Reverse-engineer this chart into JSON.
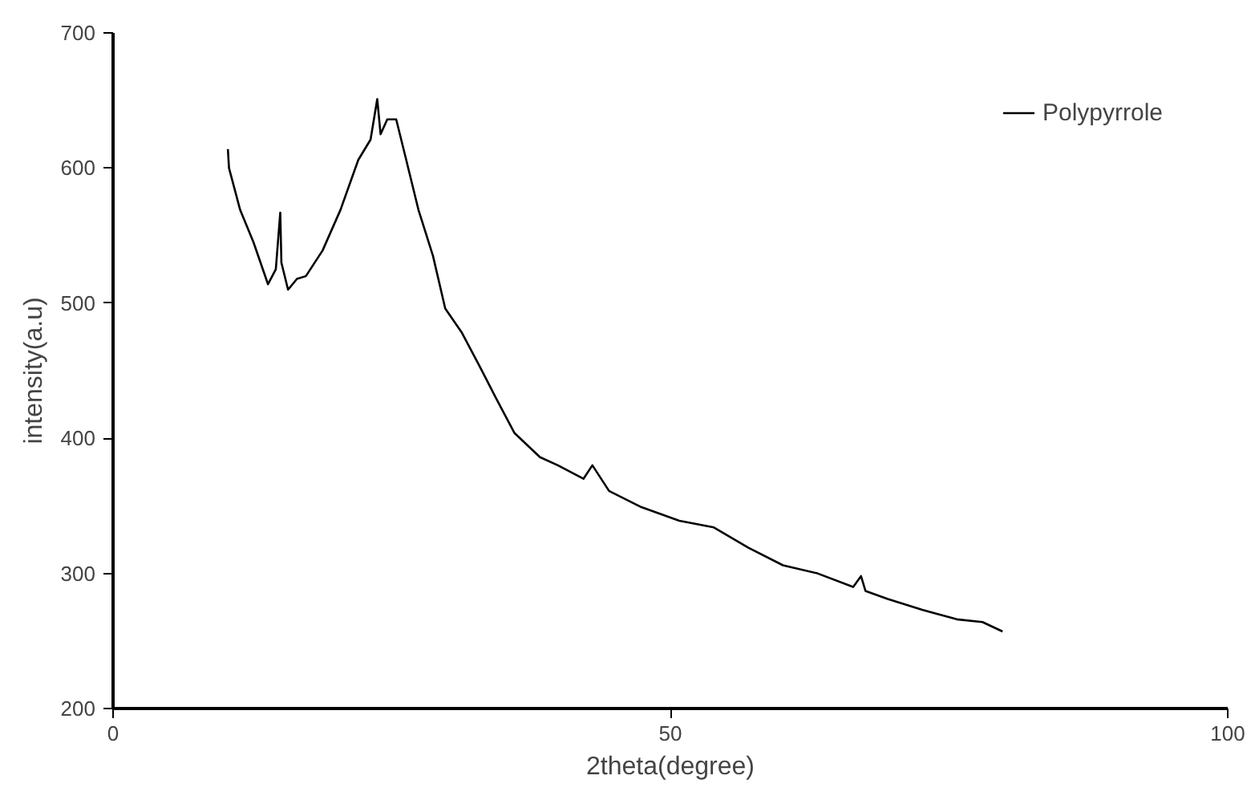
{
  "chart_data": {
    "type": "line",
    "xlabel": "2theta(degree)",
    "ylabel": "intensity(a.u)",
    "xlim": [
      0,
      100
    ],
    "ylim": [
      200,
      700
    ],
    "xticks": [
      0,
      50,
      100
    ],
    "yticks": [
      200,
      300,
      400,
      500,
      600,
      700
    ],
    "grid": false,
    "legend": "top right",
    "line_style": "solid",
    "series": [
      {
        "name": "Polypyrrole",
        "color": "#000000",
        "x": [
          10.3,
          10.4,
          11.4,
          12.6,
          13.9,
          14.6,
          15.0,
          15.1,
          15.7,
          16.5,
          17.3,
          18.8,
          20.4,
          22.0,
          23.1,
          23.7,
          24.0,
          24.6,
          25.4,
          26.3,
          27.4,
          28.7,
          29.8,
          31.3,
          32.9,
          34.4,
          36.0,
          38.3,
          39.9,
          42.2,
          43.0,
          44.5,
          47.4,
          50.8,
          53.9,
          57.0,
          60.1,
          63.2,
          66.4,
          67.1,
          67.5,
          69.5,
          72.6,
          75.7,
          78.0,
          79.8
        ],
        "values": [
          614,
          600,
          569,
          545,
          514,
          525,
          567,
          530,
          510,
          518,
          520,
          539,
          569,
          606,
          621,
          651,
          625,
          636,
          636,
          606,
          569,
          535,
          496,
          478,
          453,
          429,
          404,
          386,
          380,
          370,
          380,
          361,
          349,
          339,
          334,
          319,
          306,
          300,
          290,
          298,
          287,
          281,
          273,
          266,
          264,
          257
        ]
      }
    ]
  }
}
